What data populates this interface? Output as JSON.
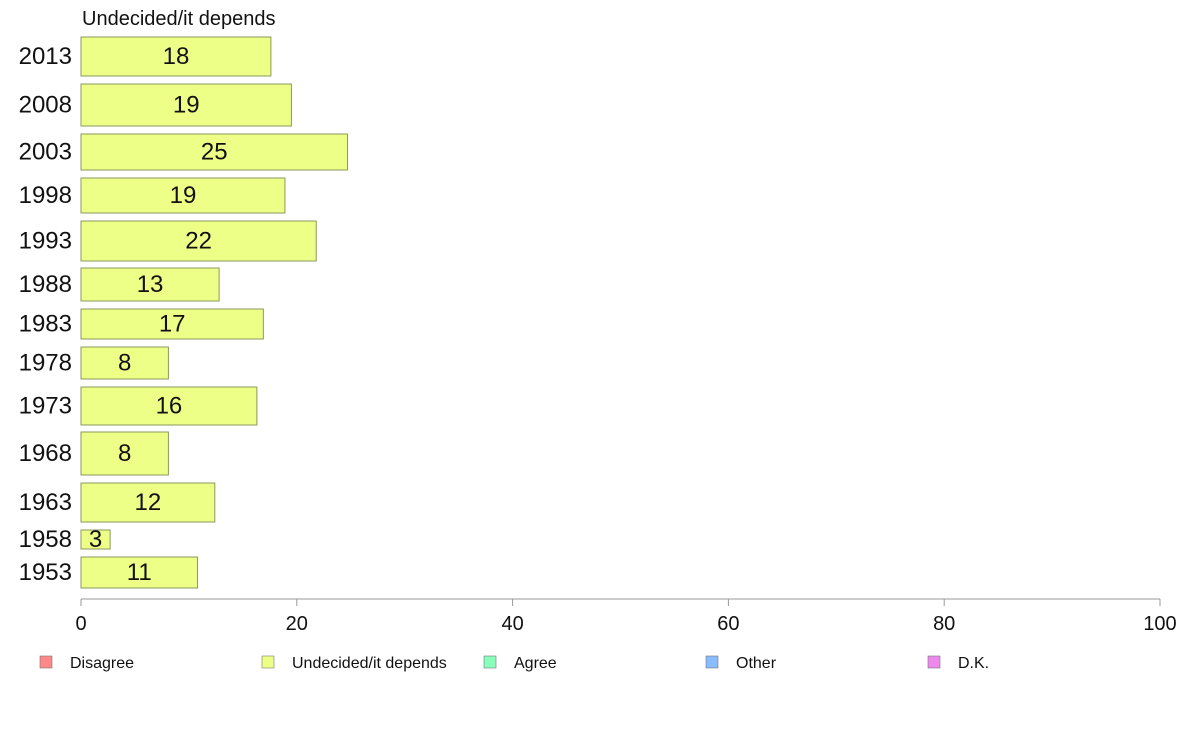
{
  "chart_data": {
    "type": "bar",
    "orientation": "horizontal",
    "title": "Undecided/it depends",
    "categories": [
      "2013",
      "2008",
      "2003",
      "1998",
      "1993",
      "1988",
      "1983",
      "1978",
      "1973",
      "1968",
      "1963",
      "1958",
      "1953"
    ],
    "values": [
      18,
      19,
      25,
      19,
      22,
      13,
      17,
      8,
      16,
      8,
      12,
      3,
      11
    ],
    "bar_lengths": [
      17.6,
      19.5,
      24.7,
      18.9,
      21.8,
      12.8,
      16.9,
      8.1,
      16.3,
      8.1,
      12.4,
      2.7,
      10.8
    ],
    "xlim": [
      0,
      100
    ],
    "xticks": [
      0,
      20,
      40,
      60,
      80,
      100
    ],
    "grid": false,
    "bar_color": "#EEFF88",
    "bar_stroke": "#8A9A5B",
    "legend_position": "bottom",
    "legend": [
      {
        "label": "Disagree",
        "color": "#FF8888"
      },
      {
        "label": "Undecided/it depends",
        "color": "#EEFF88"
      },
      {
        "label": "Agree",
        "color": "#88FFBB"
      },
      {
        "label": "Other",
        "color": "#88BBFF"
      },
      {
        "label": "D.K.",
        "color": "#EE88EE"
      }
    ]
  }
}
